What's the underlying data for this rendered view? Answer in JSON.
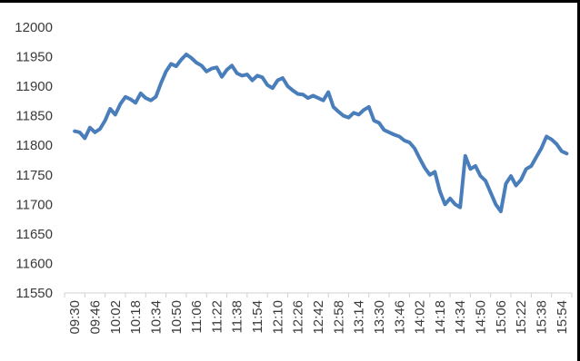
{
  "chart_data": {
    "type": "line",
    "title": "",
    "xlabel": "",
    "ylabel": "",
    "ylim": [
      11550,
      12000
    ],
    "yticks": [
      11550,
      11600,
      11650,
      11700,
      11750,
      11800,
      11850,
      11900,
      11950,
      12000
    ],
    "grid": false,
    "legend": "none",
    "categories": [
      "09:30",
      "09:46",
      "10:02",
      "10:18",
      "10:34",
      "10:50",
      "11:06",
      "11:22",
      "11:38",
      "11:54",
      "12:10",
      "12:26",
      "12:42",
      "12:58",
      "13:14",
      "13:30",
      "13:46",
      "14:02",
      "14:18",
      "14:34",
      "14:50",
      "15:06",
      "15:22",
      "15:38",
      "15:54"
    ],
    "series": [
      {
        "color": "#4a7ebb",
        "x": [
          "09:30",
          "09:34",
          "09:38",
          "09:42",
          "09:46",
          "09:50",
          "09:54",
          "09:58",
          "10:02",
          "10:06",
          "10:10",
          "10:14",
          "10:18",
          "10:22",
          "10:26",
          "10:30",
          "10:34",
          "10:38",
          "10:42",
          "10:46",
          "10:50",
          "10:54",
          "10:58",
          "11:02",
          "11:06",
          "11:10",
          "11:14",
          "11:18",
          "11:22",
          "11:26",
          "11:30",
          "11:34",
          "11:38",
          "11:42",
          "11:46",
          "11:50",
          "11:54",
          "11:58",
          "12:02",
          "12:06",
          "12:10",
          "12:14",
          "12:18",
          "12:22",
          "12:26",
          "12:30",
          "12:34",
          "12:38",
          "12:42",
          "12:46",
          "12:50",
          "12:54",
          "12:58",
          "13:02",
          "13:06",
          "13:10",
          "13:14",
          "13:18",
          "13:22",
          "13:26",
          "13:30",
          "13:34",
          "13:38",
          "13:42",
          "13:46",
          "13:50",
          "13:54",
          "13:58",
          "14:02",
          "14:06",
          "14:10",
          "14:14",
          "14:18",
          "14:22",
          "14:26",
          "14:30",
          "14:34",
          "14:38",
          "14:42",
          "14:46",
          "14:50",
          "14:54",
          "14:58",
          "15:02",
          "15:06",
          "15:10",
          "15:14",
          "15:18",
          "15:22",
          "15:26",
          "15:30",
          "15:34",
          "15:38",
          "15:42",
          "15:46",
          "15:50",
          "15:54",
          "15:58"
        ],
        "values": [
          11824,
          11822,
          11812,
          11830,
          11822,
          11828,
          11842,
          11862,
          11852,
          11870,
          11882,
          11878,
          11872,
          11888,
          11880,
          11876,
          11882,
          11905,
          11925,
          11938,
          11934,
          11945,
          11954,
          11948,
          11940,
          11935,
          11925,
          11930,
          11932,
          11916,
          11928,
          11935,
          11922,
          11918,
          11920,
          11910,
          11918,
          11915,
          11902,
          11897,
          11910,
          11914,
          11900,
          11893,
          11887,
          11886,
          11880,
          11884,
          11880,
          11876,
          11890,
          11865,
          11857,
          11850,
          11847,
          11855,
          11852,
          11860,
          11865,
          11842,
          11838,
          11826,
          11822,
          11818,
          11815,
          11808,
          11805,
          11795,
          11778,
          11762,
          11750,
          11755,
          11722,
          11700,
          11710,
          11700,
          11695,
          11782,
          11760,
          11765,
          11748,
          11740,
          11720,
          11700,
          11688,
          11735,
          11748,
          11732,
          11742,
          11760,
          11765,
          11780,
          11795,
          11815,
          11810,
          11802,
          11790,
          11786
        ]
      }
    ]
  }
}
